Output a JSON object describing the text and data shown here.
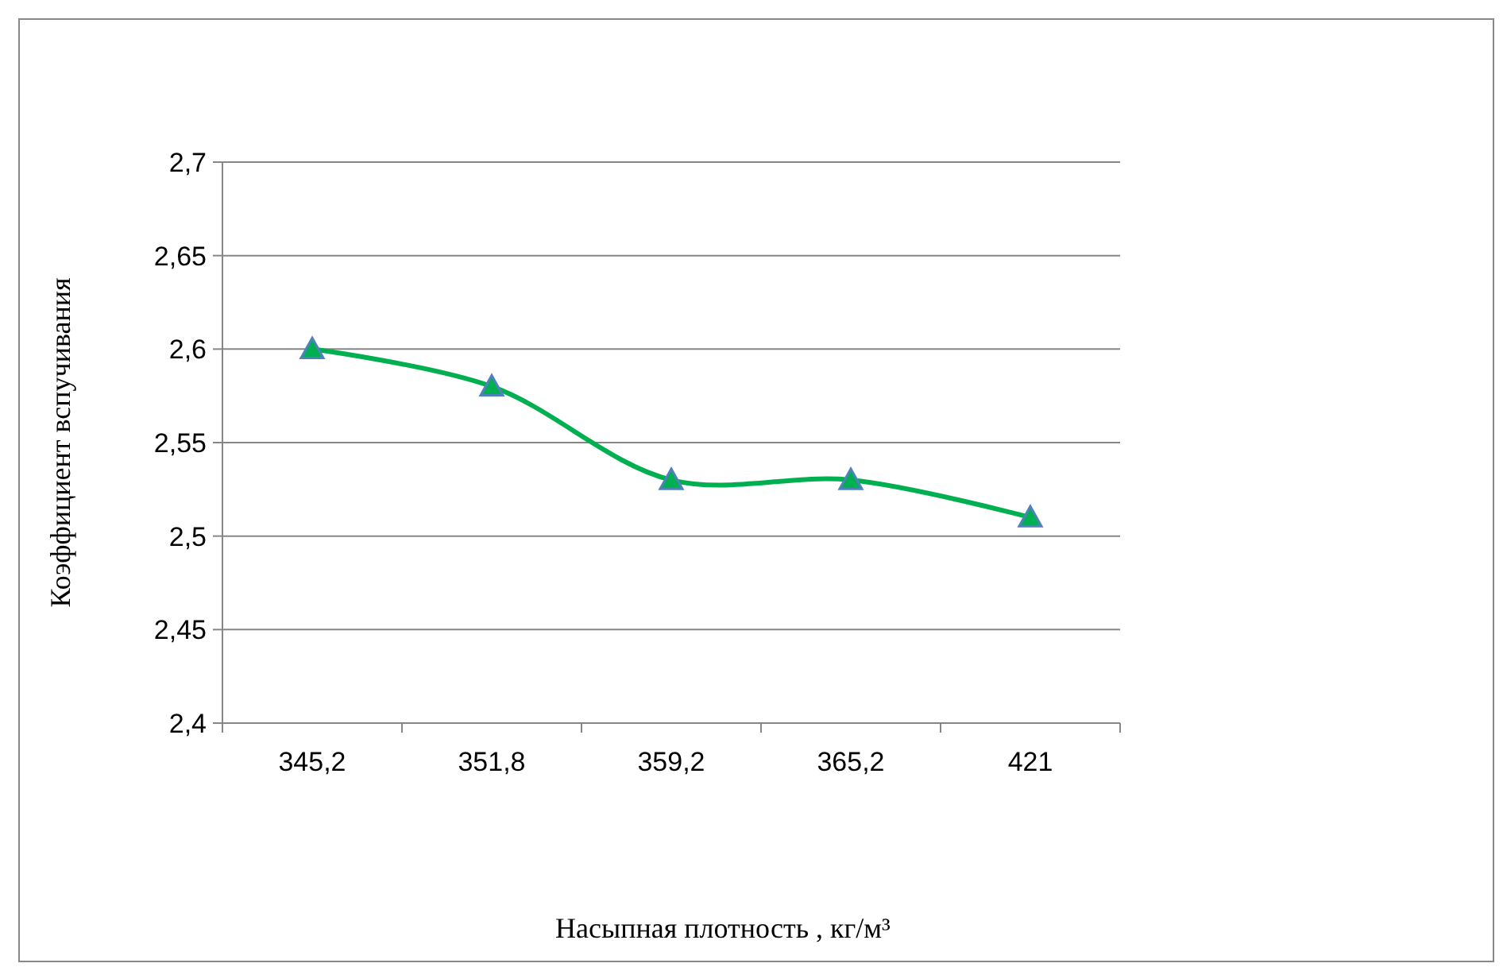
{
  "chart_data": {
    "type": "line",
    "xlabel": "Насыпная плотность , кг/м³",
    "ylabel": "Коэффициент вспучивания",
    "categories": [
      "345,2",
      "351,8",
      "359,2",
      "365,2",
      "421"
    ],
    "series": [
      {
        "color": "#00b050",
        "values": [
          2.6,
          2.58,
          2.53,
          2.53,
          2.51
        ]
      }
    ],
    "ylim": [
      2.4,
      2.7
    ],
    "yticks": [
      {
        "value": 2.4,
        "label": "2,4"
      },
      {
        "value": 2.45,
        "label": "2,45"
      },
      {
        "value": 2.5,
        "label": "2,5"
      },
      {
        "value": 2.55,
        "label": "2,55"
      },
      {
        "value": 2.6,
        "label": "2,6"
      },
      {
        "value": 2.65,
        "label": "2,65"
      },
      {
        "value": 2.7,
        "label": "2,7"
      }
    ],
    "grid": "y",
    "marker": "triangle",
    "line_style": "solid"
  }
}
